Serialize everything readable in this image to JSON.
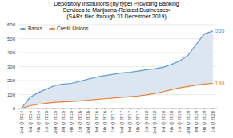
{
  "chart_data": {
    "type": "line",
    "title": "Depository Institutions (by type) Providing Banking\nServices to Marijuana-Related Businesses¹\n(SARs filed through 31 December 2019)",
    "categories": [
      "2nd Q 2014",
      "3rd Q 2014",
      "4th Q 2014",
      "1st Q 2015",
      "2nd Q 2015",
      "3rd Q 2015",
      "4th Q 2015",
      "1st Q 2016",
      "2nd Q 2016",
      "3rd Q 2016",
      "4th Q 2016",
      "1st Q 2017",
      "2nd Q 2017",
      "3rd Q 2017",
      "4th Q 2017",
      "1st Q 2018",
      "2nd Q 2018",
      "3rd Q 2018",
      "4th Q 2018",
      "1st Q 2019",
      "2nd Q 2019",
      "3rd Q 2019",
      "4th Q 2019",
      "1st Q 2020"
    ],
    "series": [
      {
        "name": "Banks",
        "color": "#5b9bd5",
        "values": [
          5,
          80,
          115,
          140,
          165,
          175,
          180,
          195,
          210,
          225,
          235,
          245,
          255,
          260,
          268,
          278,
          285,
          295,
          315,
          340,
          380,
          460,
          535,
          555
        ]
      },
      {
        "name": "Credit Unions",
        "color": "#ed7d31",
        "values": [
          2,
          20,
          30,
          38,
          45,
          48,
          50,
          55,
          60,
          65,
          70,
          75,
          80,
          85,
          90,
          98,
          108,
          120,
          135,
          148,
          158,
          168,
          175,
          180
        ]
      }
    ],
    "color": "#dce6f1",
    "annotations": [
      {
        "text": "555",
        "category": "1st Q 2020",
        "value": 555,
        "color": "#5b9bd5"
      },
      {
        "text": "180",
        "category": "1st Q 2020",
        "value": 180,
        "color": "#ed7d31"
      }
    ],
    "ylim": [
      0,
      600
    ],
    "yticks": [
      0,
      100,
      200,
      300,
      400,
      500,
      600
    ],
    "grid": true,
    "legend": "upper left"
  }
}
